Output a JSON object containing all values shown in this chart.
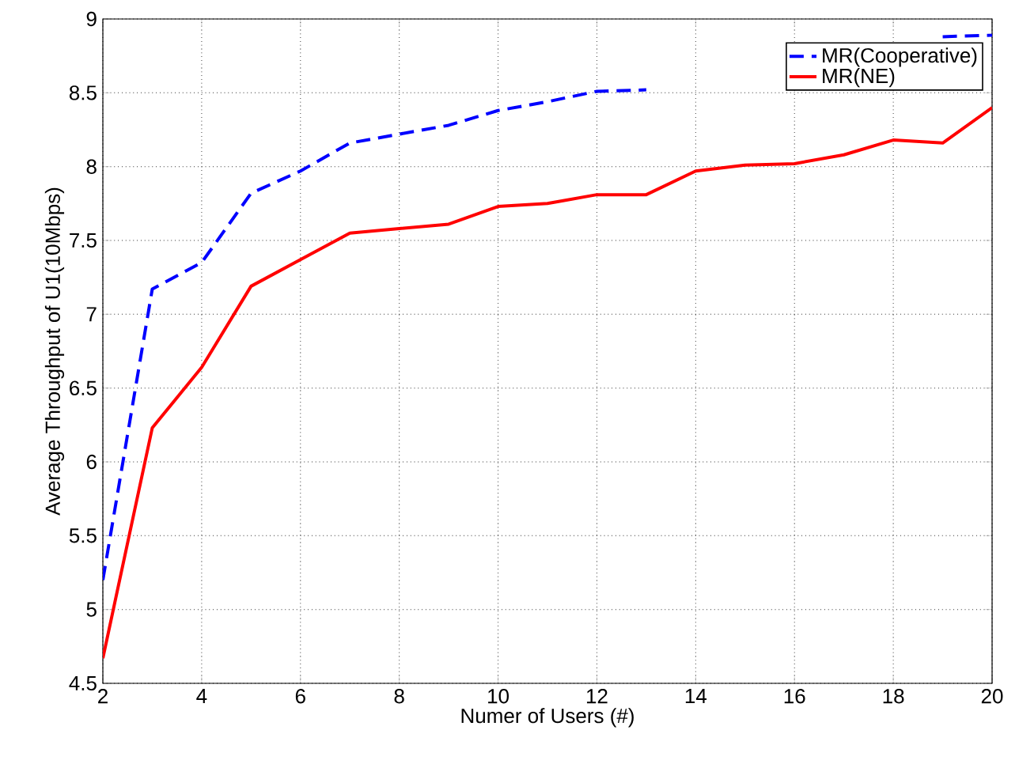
{
  "chart_data": {
    "type": "line",
    "xlabel": "Numer of Users (#)",
    "ylabel": "Average Throughput of U1(10Mbps)",
    "x": [
      2,
      3,
      4,
      5,
      6,
      7,
      8,
      9,
      10,
      11,
      12,
      13,
      14,
      15,
      16,
      17,
      18,
      19,
      20
    ],
    "series": [
      {
        "name": "MR(Cooperative)",
        "color": "#0000ff",
        "line_style": "dashed",
        "values": [
          5.2,
          7.17,
          7.35,
          7.82,
          7.97,
          8.16,
          8.22,
          8.28,
          8.38,
          8.44,
          8.51,
          8.52,
          null,
          null,
          null,
          null,
          null,
          8.88,
          8.89
        ]
      },
      {
        "name": "MR(NE)",
        "color": "#ff0000",
        "line_style": "solid",
        "values": [
          4.67,
          6.23,
          6.64,
          7.19,
          7.37,
          7.55,
          7.58,
          7.61,
          7.73,
          7.75,
          7.81,
          7.81,
          7.97,
          8.01,
          8.02,
          8.08,
          8.18,
          8.16,
          8.4
        ]
      }
    ],
    "xlim": [
      2,
      20
    ],
    "ylim": [
      4.5,
      9
    ],
    "xticks": [
      2,
      4,
      6,
      8,
      10,
      12,
      14,
      16,
      18,
      20
    ],
    "yticks": [
      4.5,
      5,
      5.5,
      6,
      6.5,
      7,
      7.5,
      8,
      8.5,
      9
    ],
    "grid": true,
    "legend": "top right",
    "marker": "none"
  }
}
